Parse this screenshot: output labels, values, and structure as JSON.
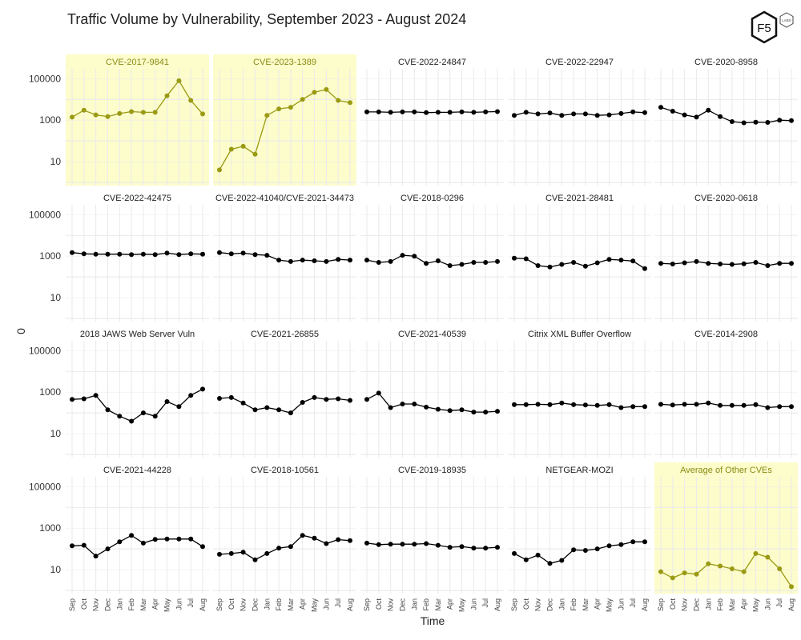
{
  "title": "Traffic Volume by Vulnerability, September 2023 - August 2024",
  "logo": {
    "text": "F5",
    "subtext": "LABS"
  },
  "colors": {
    "highlight_line": "#9a9a14",
    "highlight_bg": "#fdfccb",
    "highlight_text": "#8a8a14",
    "normal_line": "#000000",
    "grid": "#ebebeb"
  },
  "chart_data": {
    "type": "line",
    "layout": "facet-grid",
    "xlabel": "Time",
    "ylabel": "0",
    "yscale": "log",
    "ylim": [
      0.7,
      300000
    ],
    "yticks": [
      10,
      1000,
      100000
    ],
    "ytick_labels": [
      "10",
      "1000",
      "100000"
    ],
    "x": [
      "Sep",
      "Oct",
      "Nov",
      "Dec",
      "Jan",
      "Feb",
      "Mar",
      "Apr",
      "May",
      "Jun",
      "Jul",
      "Aug"
    ],
    "facets": [
      {
        "name": "CVE-2017-9841",
        "highlight": true,
        "values": [
          1400,
          3000,
          1800,
          1500,
          2100,
          2600,
          2400,
          2400,
          15000,
          80000,
          9000,
          2000
        ]
      },
      {
        "name": "CVE-2023-1389",
        "highlight": true,
        "values": [
          4,
          40,
          55,
          23,
          1700,
          3500,
          4200,
          10000,
          22000,
          30000,
          9000,
          7000
        ]
      },
      {
        "name": "CVE-2022-24847",
        "highlight": false,
        "values": [
          2500,
          2500,
          2400,
          2500,
          2500,
          2300,
          2400,
          2400,
          2500,
          2400,
          2500,
          2600
        ]
      },
      {
        "name": "CVE-2022-22947",
        "highlight": false,
        "values": [
          1700,
          2400,
          2000,
          2200,
          1700,
          2000,
          2000,
          1700,
          1800,
          2100,
          2500,
          2300
        ]
      },
      {
        "name": "CVE-2020-8958",
        "highlight": false,
        "values": [
          4200,
          2700,
          1800,
          1400,
          3000,
          1500,
          850,
          750,
          800,
          780,
          1000,
          950
        ]
      },
      {
        "name": "CVE-2022-42475",
        "highlight": false,
        "values": [
          1500,
          1300,
          1250,
          1250,
          1250,
          1200,
          1250,
          1200,
          1400,
          1200,
          1300,
          1250
        ]
      },
      {
        "name": "CVE-2022-41040/CVE-2021-34473",
        "highlight": false,
        "values": [
          1500,
          1300,
          1400,
          1200,
          1100,
          650,
          550,
          650,
          600,
          550,
          700,
          650
        ]
      },
      {
        "name": "CVE-2018-0296",
        "highlight": false,
        "values": [
          650,
          500,
          550,
          1100,
          1000,
          450,
          600,
          350,
          400,
          500,
          500,
          550
        ]
      },
      {
        "name": "CVE-2021-28481",
        "highlight": false,
        "values": [
          800,
          750,
          350,
          300,
          400,
          500,
          330,
          480,
          700,
          650,
          580,
          250
        ]
      },
      {
        "name": "CVE-2020-0618",
        "highlight": false,
        "values": [
          450,
          420,
          480,
          550,
          450,
          420,
          400,
          430,
          500,
          350,
          450,
          450
        ]
      },
      {
        "name": "2018 JAWS Web Server Vuln",
        "highlight": false,
        "values": [
          450,
          480,
          700,
          140,
          70,
          40,
          100,
          70,
          350,
          200,
          700,
          1400
        ]
      },
      {
        "name": "CVE-2021-26855",
        "highlight": false,
        "values": [
          500,
          550,
          300,
          140,
          180,
          140,
          100,
          320,
          550,
          450,
          480,
          400
        ]
      },
      {
        "name": "CVE-2021-40539",
        "highlight": false,
        "values": [
          450,
          900,
          180,
          270,
          270,
          190,
          150,
          130,
          140,
          110,
          110,
          120
        ]
      },
      {
        "name": "Citrix XML Buffer Overflow",
        "highlight": false,
        "values": [
          250,
          250,
          260,
          250,
          300,
          250,
          240,
          230,
          250,
          180,
          200,
          200
        ]
      },
      {
        "name": "CVE-2014-2908",
        "highlight": false,
        "values": [
          260,
          240,
          260,
          260,
          300,
          230,
          230,
          230,
          250,
          180,
          200,
          200
        ]
      },
      {
        "name": "CVE-2021-44228",
        "highlight": false,
        "values": [
          140,
          150,
          45,
          100,
          220,
          450,
          190,
          290,
          300,
          300,
          300,
          130
        ]
      },
      {
        "name": "CVE-2018-10561",
        "highlight": false,
        "values": [
          55,
          60,
          70,
          30,
          60,
          110,
          130,
          450,
          330,
          180,
          280,
          250
        ]
      },
      {
        "name": "CVE-2019-18935",
        "highlight": false,
        "values": [
          190,
          160,
          170,
          170,
          170,
          180,
          150,
          120,
          130,
          110,
          110,
          120
        ]
      },
      {
        "name": "NETGEAR-MOZI",
        "highlight": false,
        "values": [
          60,
          30,
          50,
          20,
          28,
          90,
          85,
          100,
          140,
          160,
          220,
          220
        ]
      },
      {
        "name": "Average of Other CVEs",
        "highlight": true,
        "values": [
          8,
          4,
          7,
          6,
          19,
          15,
          11,
          8,
          60,
          40,
          11,
          1.5
        ]
      }
    ]
  }
}
